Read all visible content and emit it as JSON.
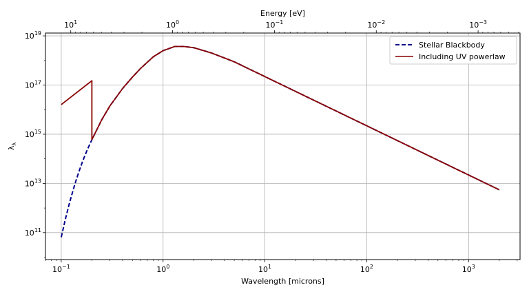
{
  "chart_data": {
    "type": "line",
    "xscale": "log",
    "yscale": "log",
    "xlabel": "Wavelength [microns]",
    "ylabel": "λ_λ",
    "ylabel_base": "λ",
    "ylabel_sub": "λ",
    "top_xlabel": "Energy [eV]",
    "xlim": [
      0.07,
      3200
    ],
    "ylim": [
      8000000000.0,
      1.3e+19
    ],
    "grid": true,
    "legend_location": "top-right",
    "x_ticks": [
      {
        "value": 0.1,
        "base": "10",
        "exp": "−1"
      },
      {
        "value": 1,
        "base": "10",
        "exp": "0"
      },
      {
        "value": 10,
        "base": "10",
        "exp": "1"
      },
      {
        "value": 100,
        "base": "10",
        "exp": "2"
      },
      {
        "value": 1000,
        "base": "10",
        "exp": "3"
      }
    ],
    "y_ticks": [
      {
        "value": 100000000000.0,
        "base": "10",
        "exp": "11"
      },
      {
        "value": 10000000000000.0,
        "base": "10",
        "exp": "13"
      },
      {
        "value": 1000000000000000.0,
        "base": "10",
        "exp": "15"
      },
      {
        "value": 1e+17,
        "base": "10",
        "exp": "17"
      },
      {
        "value": 1e+19,
        "base": "10",
        "exp": "19"
      }
    ],
    "top_ticks": [
      {
        "energy": 10,
        "base": "10",
        "exp": "1"
      },
      {
        "energy": 1,
        "base": "10",
        "exp": "0"
      },
      {
        "energy": 0.1,
        "base": "10",
        "exp": "−1"
      },
      {
        "energy": 0.01,
        "base": "10",
        "exp": "−2"
      },
      {
        "energy": 0.001,
        "base": "10",
        "exp": "−3"
      }
    ],
    "energy_conversion_ev_micron": 1.2398,
    "series": [
      {
        "name": "Stellar Blackbody",
        "color": "#00008b",
        "style": "dashed",
        "x": [
          0.1,
          0.11,
          0.12,
          0.13,
          0.14,
          0.15,
          0.16,
          0.17,
          0.18,
          0.19,
          0.2,
          0.25,
          0.3,
          0.4,
          0.5,
          0.6,
          0.8,
          1.0,
          1.3,
          1.6,
          2,
          3,
          5,
          10,
          20,
          50,
          100,
          200,
          500,
          1000,
          2000
        ],
        "y": [
          65000000000.0,
          360000000000.0,
          1500000000000.0,
          4900000000000.0,
          13500000000000.0,
          32000000000000.0,
          68000000000000.0,
          130000000000000.0,
          230000000000000.0,
          380000000000000.0,
          600000000000000.0,
          3900000000000000.0,
          1.4e+16,
          7.2e+16,
          2.1e+17,
          4.7e+17,
          1.4e+18,
          2.5e+18,
          3.7e+18,
          3.7e+18,
          3.3e+18,
          2e+18,
          8.8e+17,
          2.2e+17,
          5.5e+16,
          8800000000000000.0,
          2200000000000000.0,
          550000000000000.0,
          88000000000000.0,
          22000000000000.0,
          5500000000000.0
        ]
      },
      {
        "name": "Including UV powerlaw",
        "color": "#8b0000",
        "style": "solid",
        "x": [
          0.1,
          0.2,
          0.2,
          0.25,
          0.3,
          0.4,
          0.5,
          0.6,
          0.8,
          1.0,
          1.3,
          1.6,
          2,
          3,
          5,
          10,
          20,
          50,
          100,
          200,
          500,
          1000,
          2000
        ],
        "y": [
          1.6e+16,
          1.5e+17,
          600000000000000.0,
          3900000000000000.0,
          1.4e+16,
          7.2e+16,
          2.1e+17,
          4.7e+17,
          1.4e+18,
          2.5e+18,
          3.7e+18,
          3.7e+18,
          3.3e+18,
          2e+18,
          8.8e+17,
          2.2e+17,
          5.5e+16,
          8800000000000000.0,
          2200000000000000.0,
          550000000000000.0,
          88000000000000.0,
          22000000000000.0,
          5500000000000.0
        ]
      }
    ]
  }
}
